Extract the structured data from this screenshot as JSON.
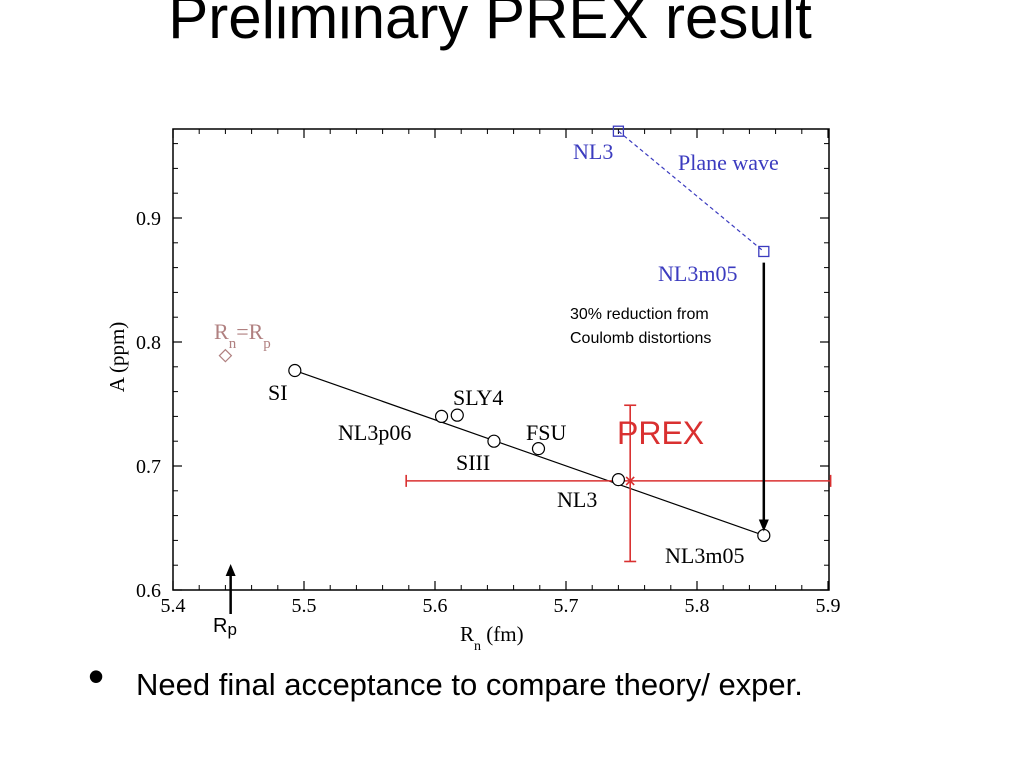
{
  "slide": {
    "title": "Preliminary PREX result",
    "bullet": "Need final acceptance to compare theory/ exper."
  },
  "chart_data": {
    "type": "scatter",
    "xlabel": "R",
    "xlabel_sub": "n",
    "xlabel_unit": " (fm)",
    "ylabel": "A (ppm)",
    "xlim": [
      5.4,
      5.9
    ],
    "ylim": [
      0.6,
      0.97
    ],
    "x_ticks": [
      5.4,
      5.5,
      5.6,
      5.7,
      5.8,
      5.9
    ],
    "x_tick_labels": [
      "5.4",
      "5.5",
      "5.6",
      "5.7",
      "5.8",
      "5.9"
    ],
    "y_ticks": [
      0.6,
      0.7,
      0.8,
      0.9
    ],
    "y_tick_labels": [
      "0.6",
      "0.7",
      "0.8",
      "0.9"
    ],
    "colors": {
      "models": "#000000",
      "plane_wave": "#3b3bbf",
      "prex": "#d93030",
      "rn_rp": "#b08080",
      "text": "#000000"
    },
    "series": [
      {
        "name": "",
        "style": "circle-line",
        "points": [
          {
            "label": "SI",
            "x": 5.493,
            "y": 0.777
          },
          {
            "label": "NL3p06",
            "x": 5.605,
            "y": 0.74
          },
          {
            "label": "SLY4",
            "x": 5.617,
            "y": 0.741
          },
          {
            "label": "SIII",
            "x": 5.645,
            "y": 0.72
          },
          {
            "label": "FSU",
            "x": 5.679,
            "y": 0.714
          },
          {
            "label": "NL3",
            "x": 5.74,
            "y": 0.689
          },
          {
            "label": "NL3m05",
            "x": 5.851,
            "y": 0.644
          }
        ],
        "fit_line": {
          "x": [
            5.493,
            5.851
          ],
          "y": [
            0.777,
            0.644
          ]
        }
      },
      {
        "name": "Plane wave",
        "style": "square-dashed",
        "points": [
          {
            "label": "NL3",
            "x": 5.74,
            "y": 0.97
          },
          {
            "label": "NL3m05",
            "x": 5.851,
            "y": 0.873
          }
        ]
      },
      {
        "name": "R=R",
        "style": "diamond",
        "label_main_1": "R",
        "label_sub_1": "n",
        "label_eq": "=R",
        "label_sub_2": "p",
        "points": [
          {
            "x": 5.44,
            "y": 0.789
          }
        ]
      }
    ],
    "measurement": {
      "label": "PREX",
      "x": 5.749,
      "y": 0.688,
      "x_err": [
        5.578,
        5.902
      ],
      "y_err": [
        0.623,
        0.749
      ]
    },
    "annotations": [
      {
        "text": "30% reduction from",
        "text2": "Coulomb distortions",
        "arrow_from": [
          5.851,
          0.864
        ],
        "arrow_to": [
          5.851,
          0.652
        ]
      },
      {
        "text": "R",
        "sub": "p",
        "arrow_from": [
          5.444,
          0.588
        ],
        "arrow_to": [
          5.444,
          0.621
        ]
      }
    ]
  }
}
